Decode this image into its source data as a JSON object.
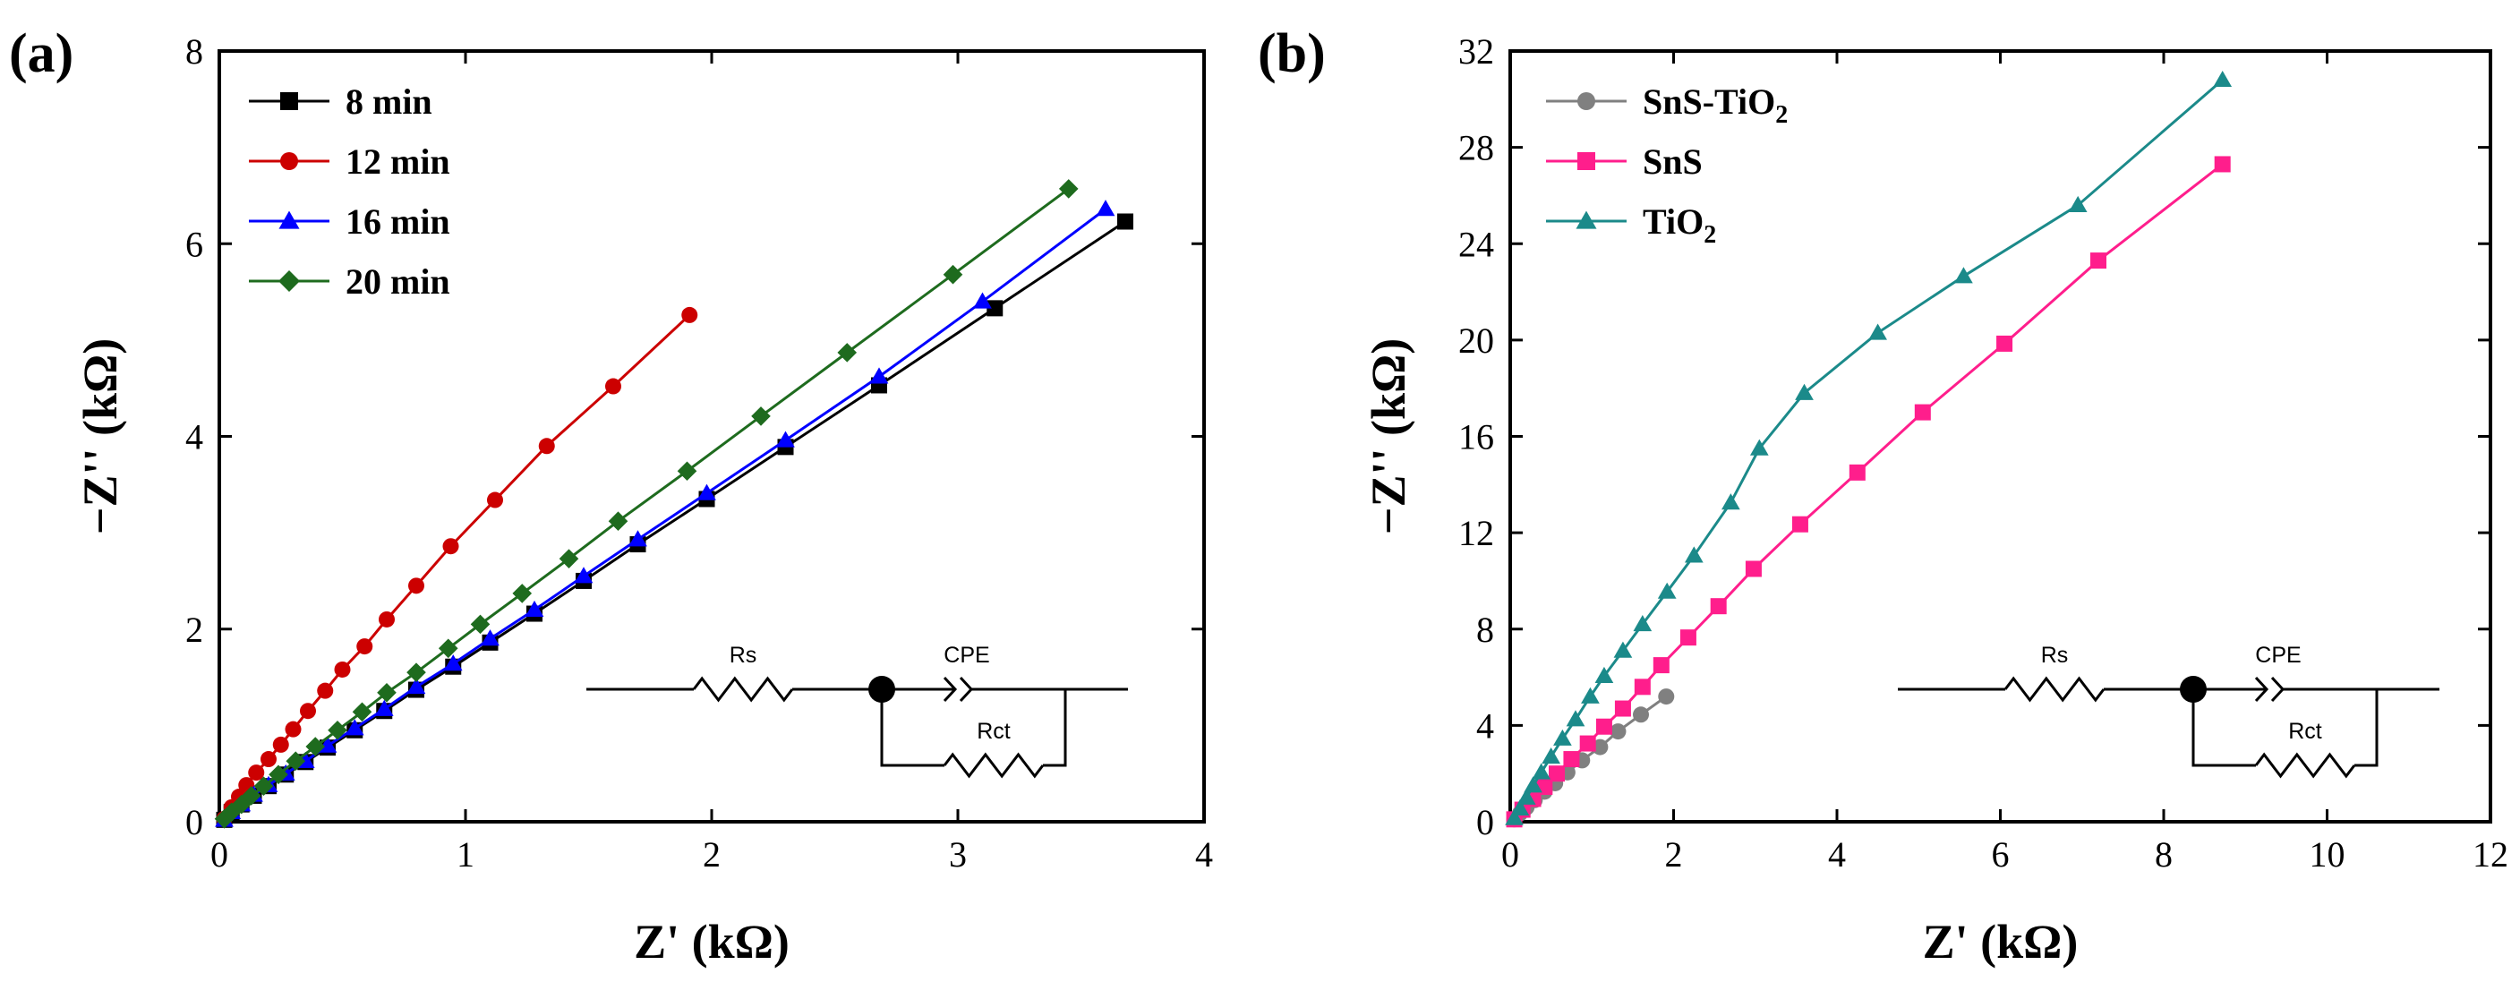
{
  "chart_data": [
    {
      "panel_label": "(a)",
      "type": "line",
      "xlabel": "Z' (kΩ)",
      "ylabel": "−Z'' (kΩ)",
      "xlim": [
        0,
        4
      ],
      "ylim": [
        0,
        8
      ],
      "xticks": [
        "0",
        "1",
        "2",
        "3",
        "4"
      ],
      "yticks": [
        "0",
        "2",
        "4",
        "6",
        "8"
      ],
      "legend_position": "top-left",
      "series": [
        {
          "name": "8 min",
          "color": "#000000",
          "marker": "square",
          "x": [
            0.02,
            0.05,
            0.09,
            0.14,
            0.2,
            0.27,
            0.35,
            0.44,
            0.55,
            0.67,
            0.8,
            0.95,
            1.1,
            1.28,
            1.48,
            1.7,
            1.98,
            2.3,
            2.68,
            3.15,
            3.68
          ],
          "y": [
            0.02,
            0.1,
            0.18,
            0.27,
            0.37,
            0.49,
            0.62,
            0.77,
            0.95,
            1.15,
            1.37,
            1.61,
            1.86,
            2.16,
            2.5,
            2.88,
            3.35,
            3.89,
            4.53,
            5.33,
            6.23
          ]
        },
        {
          "name": "12 min",
          "color": "#cc0000",
          "marker": "circle",
          "x": [
            0.02,
            0.05,
            0.08,
            0.11,
            0.15,
            0.2,
            0.25,
            0.3,
            0.36,
            0.43,
            0.5,
            0.59,
            0.68,
            0.8,
            0.94,
            1.12,
            1.33,
            1.6,
            1.91
          ],
          "y": [
            0.03,
            0.15,
            0.26,
            0.38,
            0.51,
            0.65,
            0.8,
            0.96,
            1.15,
            1.36,
            1.58,
            1.82,
            2.1,
            2.45,
            2.86,
            3.34,
            3.9,
            4.52,
            5.26
          ]
        },
        {
          "name": "16 min",
          "color": "#0000ff",
          "marker": "triangle",
          "x": [
            0.02,
            0.05,
            0.09,
            0.14,
            0.2,
            0.27,
            0.35,
            0.44,
            0.55,
            0.67,
            0.8,
            0.95,
            1.1,
            1.28,
            1.48,
            1.7,
            1.98,
            2.3,
            2.68,
            3.1,
            3.6
          ],
          "y": [
            0.02,
            0.1,
            0.18,
            0.28,
            0.38,
            0.5,
            0.63,
            0.79,
            0.97,
            1.17,
            1.4,
            1.64,
            1.9,
            2.2,
            2.55,
            2.93,
            3.41,
            3.96,
            4.62,
            5.4,
            6.36
          ]
        },
        {
          "name": "20 min",
          "color": "#1e6b1e",
          "marker": "diamond",
          "x": [
            0.02,
            0.05,
            0.09,
            0.13,
            0.18,
            0.24,
            0.31,
            0.39,
            0.48,
            0.58,
            0.68,
            0.8,
            0.93,
            1.06,
            1.23,
            1.42,
            1.62,
            1.9,
            2.2,
            2.55,
            2.98,
            3.45
          ],
          "y": [
            0.03,
            0.1,
            0.18,
            0.27,
            0.37,
            0.49,
            0.63,
            0.78,
            0.95,
            1.14,
            1.34,
            1.55,
            1.8,
            2.05,
            2.37,
            2.73,
            3.12,
            3.64,
            4.21,
            4.87,
            5.68,
            6.57
          ]
        }
      ],
      "circuit": {
        "r1": "Rs",
        "cpe": "CPE",
        "r2": "Rct"
      }
    },
    {
      "panel_label": "(b)",
      "type": "line",
      "xlabel": "Z' (kΩ)",
      "ylabel": "−Z'' (kΩ)",
      "xlim": [
        0,
        12
      ],
      "ylim": [
        0,
        32
      ],
      "xticks": [
        "0",
        "2",
        "4",
        "6",
        "8",
        "10",
        "12"
      ],
      "yticks": [
        "0",
        "4",
        "8",
        "12",
        "16",
        "20",
        "24",
        "28",
        "32"
      ],
      "legend_position": "top-left",
      "series": [
        {
          "name": "SnS-TiO",
          "subscript": "2",
          "color": "#808080",
          "marker": "circle",
          "x": [
            0.05,
            0.12,
            0.2,
            0.3,
            0.42,
            0.55,
            0.7,
            0.88,
            1.1,
            1.32,
            1.6,
            1.91
          ],
          "y": [
            0.1,
            0.35,
            0.6,
            0.9,
            1.25,
            1.6,
            2.05,
            2.55,
            3.1,
            3.75,
            4.45,
            5.2
          ]
        },
        {
          "name": "SnS",
          "color": "#ff1e8c",
          "marker": "square",
          "x": [
            0.05,
            0.15,
            0.28,
            0.42,
            0.57,
            0.75,
            0.95,
            1.15,
            1.38,
            1.62,
            1.85,
            2.18,
            2.55,
            2.98,
            3.55,
            4.25,
            5.05,
            6.05,
            7.2,
            8.72
          ],
          "y": [
            0.1,
            0.5,
            0.95,
            1.45,
            2,
            2.6,
            3.25,
            3.95,
            4.7,
            5.6,
            6.5,
            7.65,
            8.95,
            10.5,
            12.35,
            14.5,
            17,
            19.85,
            23.3,
            27.3
          ]
        },
        {
          "name": "TiO",
          "subscript": "2",
          "color": "#1b8a8a",
          "marker": "triangle",
          "x": [
            0.05,
            0.12,
            0.2,
            0.28,
            0.38,
            0.5,
            0.64,
            0.8,
            0.98,
            1.15,
            1.38,
            1.62,
            1.92,
            2.25,
            2.7,
            3.05,
            3.6,
            4.5,
            5.55,
            6.95,
            8.72
          ],
          "y": [
            0.15,
            0.55,
            1,
            1.5,
            2.05,
            2.7,
            3.45,
            4.25,
            5.2,
            6.05,
            7.1,
            8.2,
            9.55,
            11.05,
            13.25,
            15.5,
            17.8,
            20.3,
            22.65,
            25.6,
            30.8
          ]
        }
      ],
      "circuit": {
        "r1": "Rs",
        "cpe": "CPE",
        "r2": "Rct"
      }
    }
  ]
}
